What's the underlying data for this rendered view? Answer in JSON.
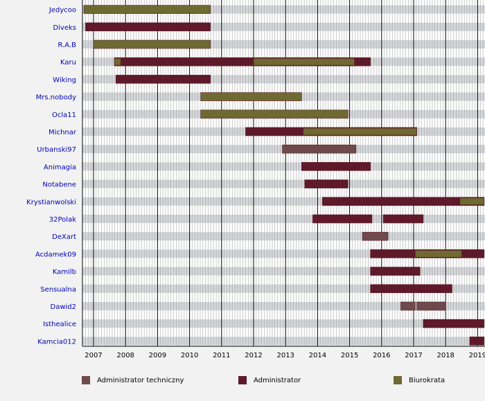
{
  "chart_data": {
    "type": "timeline",
    "title": "",
    "x_axis": {
      "type": "year",
      "min": 2006.7,
      "max": 2019.2,
      "tick_labels": [
        "2007",
        "2008",
        "2009",
        "2010",
        "2011",
        "2012",
        "2013",
        "2014",
        "2015",
        "2016",
        "2017",
        "2018",
        "2019"
      ]
    },
    "grid": true,
    "legend_position": "bottom",
    "legend": [
      {
        "key": "tech",
        "label": "Administrator techniczny",
        "color": "#6e4a4c"
      },
      {
        "key": "admin",
        "label": "Administrator",
        "color": "#5e1a2a"
      },
      {
        "key": "biuro",
        "label": "Biurokrata",
        "color": "#6e6a32"
      }
    ],
    "rows": [
      {
        "name": "Jedycoo",
        "bars": [
          {
            "role": "biuro",
            "start": 2006.7,
            "end": 2010.65
          }
        ]
      },
      {
        "name": "Diveks",
        "bars": [
          {
            "role": "admin",
            "start": 2006.75,
            "end": 2010.65
          }
        ]
      },
      {
        "name": "R.A.B",
        "bars": [
          {
            "role": "biuro",
            "start": 2007.0,
            "end": 2010.65
          }
        ]
      },
      {
        "name": "Karu",
        "bars": [
          {
            "role": "admin",
            "start": 2007.65,
            "end": 2015.65
          },
          {
            "role": "biuro",
            "start": 2007.65,
            "end": 2007.85
          },
          {
            "role": "biuro",
            "start": 2012.0,
            "end": 2015.15
          }
        ]
      },
      {
        "name": "Wiking",
        "bars": [
          {
            "role": "admin",
            "start": 2007.7,
            "end": 2010.65
          }
        ]
      },
      {
        "name": "Mrs.nobody",
        "bars": [
          {
            "role": "biuro",
            "start": 2010.35,
            "end": 2013.5
          }
        ]
      },
      {
        "name": "Ocla11",
        "bars": [
          {
            "role": "biuro",
            "start": 2010.35,
            "end": 2014.95
          }
        ]
      },
      {
        "name": "Michnar",
        "bars": [
          {
            "role": "admin",
            "start": 2011.75,
            "end": 2017.1
          },
          {
            "role": "biuro",
            "start": 2013.55,
            "end": 2017.1
          }
        ]
      },
      {
        "name": "Urbanski97",
        "bars": [
          {
            "role": "tech",
            "start": 2012.9,
            "end": 2015.2
          }
        ]
      },
      {
        "name": "Animagia",
        "bars": [
          {
            "role": "admin",
            "start": 2013.5,
            "end": 2015.65
          }
        ]
      },
      {
        "name": "Notabene",
        "bars": [
          {
            "role": "admin",
            "start": 2013.6,
            "end": 2014.95
          }
        ]
      },
      {
        "name": "Krystianwolski",
        "bars": [
          {
            "role": "admin",
            "start": 2014.15,
            "end": 2019.2
          },
          {
            "role": "biuro",
            "start": 2018.45,
            "end": 2019.2
          }
        ]
      },
      {
        "name": "32Polak",
        "bars": [
          {
            "role": "admin",
            "start": 2013.85,
            "end": 2015.7
          },
          {
            "role": "admin",
            "start": 2016.05,
            "end": 2017.3
          }
        ]
      },
      {
        "name": "DeXart",
        "bars": [
          {
            "role": "tech",
            "start": 2015.4,
            "end": 2016.2
          }
        ]
      },
      {
        "name": "Acdamek09",
        "bars": [
          {
            "role": "admin",
            "start": 2015.65,
            "end": 2019.2
          },
          {
            "role": "biuro",
            "start": 2017.05,
            "end": 2018.5
          }
        ]
      },
      {
        "name": "Kamilb",
        "bars": [
          {
            "role": "admin",
            "start": 2015.65,
            "end": 2017.2
          }
        ]
      },
      {
        "name": "Sensualna",
        "bars": [
          {
            "role": "admin",
            "start": 2015.65,
            "end": 2018.2
          }
        ]
      },
      {
        "name": "Dawid2",
        "bars": [
          {
            "role": "tech",
            "start": 2016.6,
            "end": 2017.05
          },
          {
            "role": "tech",
            "start": 2017.1,
            "end": 2018.0
          }
        ]
      },
      {
        "name": "Isthealice",
        "bars": [
          {
            "role": "admin",
            "start": 2017.3,
            "end": 2019.2
          }
        ]
      },
      {
        "name": "Kamcia012",
        "bars": [
          {
            "role": "admin",
            "start": 2018.75,
            "end": 2019.2
          }
        ]
      }
    ]
  }
}
